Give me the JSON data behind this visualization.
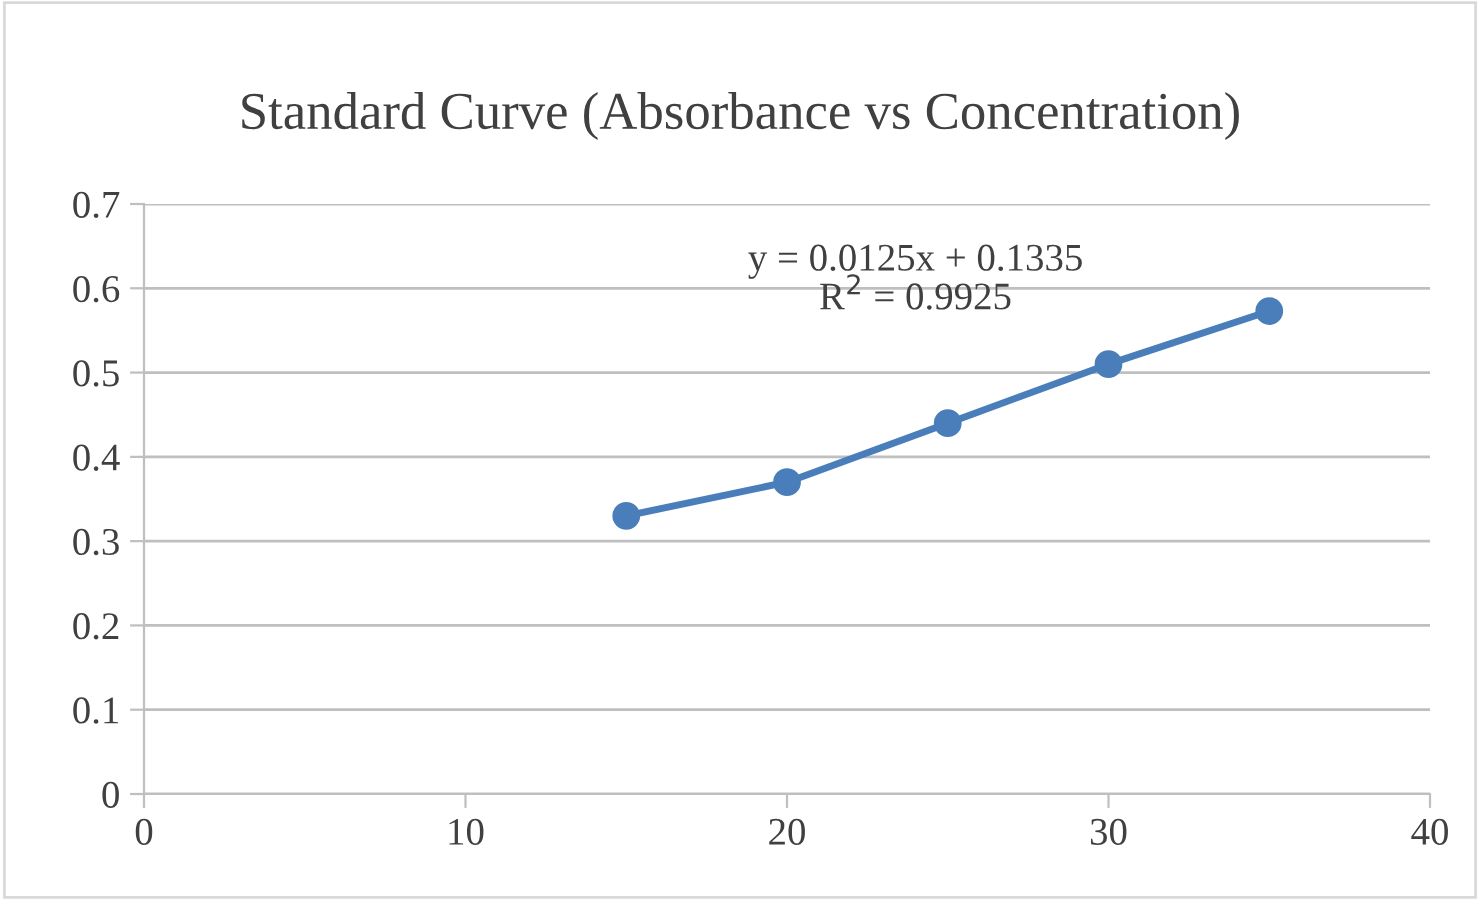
{
  "chart_data": {
    "type": "line",
    "title": "Standard Curve (Absorbance vs Concentration)",
    "x": [
      15,
      20,
      25,
      30,
      35
    ],
    "series": [
      {
        "color": "#4a7ebb",
        "values": [
          0.33,
          0.37,
          0.44,
          0.51,
          0.573
        ]
      }
    ],
    "marker": "circle",
    "line_style": "solid",
    "xlim": [
      0,
      40
    ],
    "xticks": [
      0,
      10,
      20,
      30,
      40
    ],
    "ylim": [
      0,
      0.7
    ],
    "yticks": [
      0,
      0.1,
      0.2,
      0.3,
      0.4,
      0.5,
      0.6,
      0.7
    ],
    "grid": "y",
    "annotations": [
      "y = 0.0125x + 0.1335\nR$^{2}$ = 0.9925"
    ]
  }
}
